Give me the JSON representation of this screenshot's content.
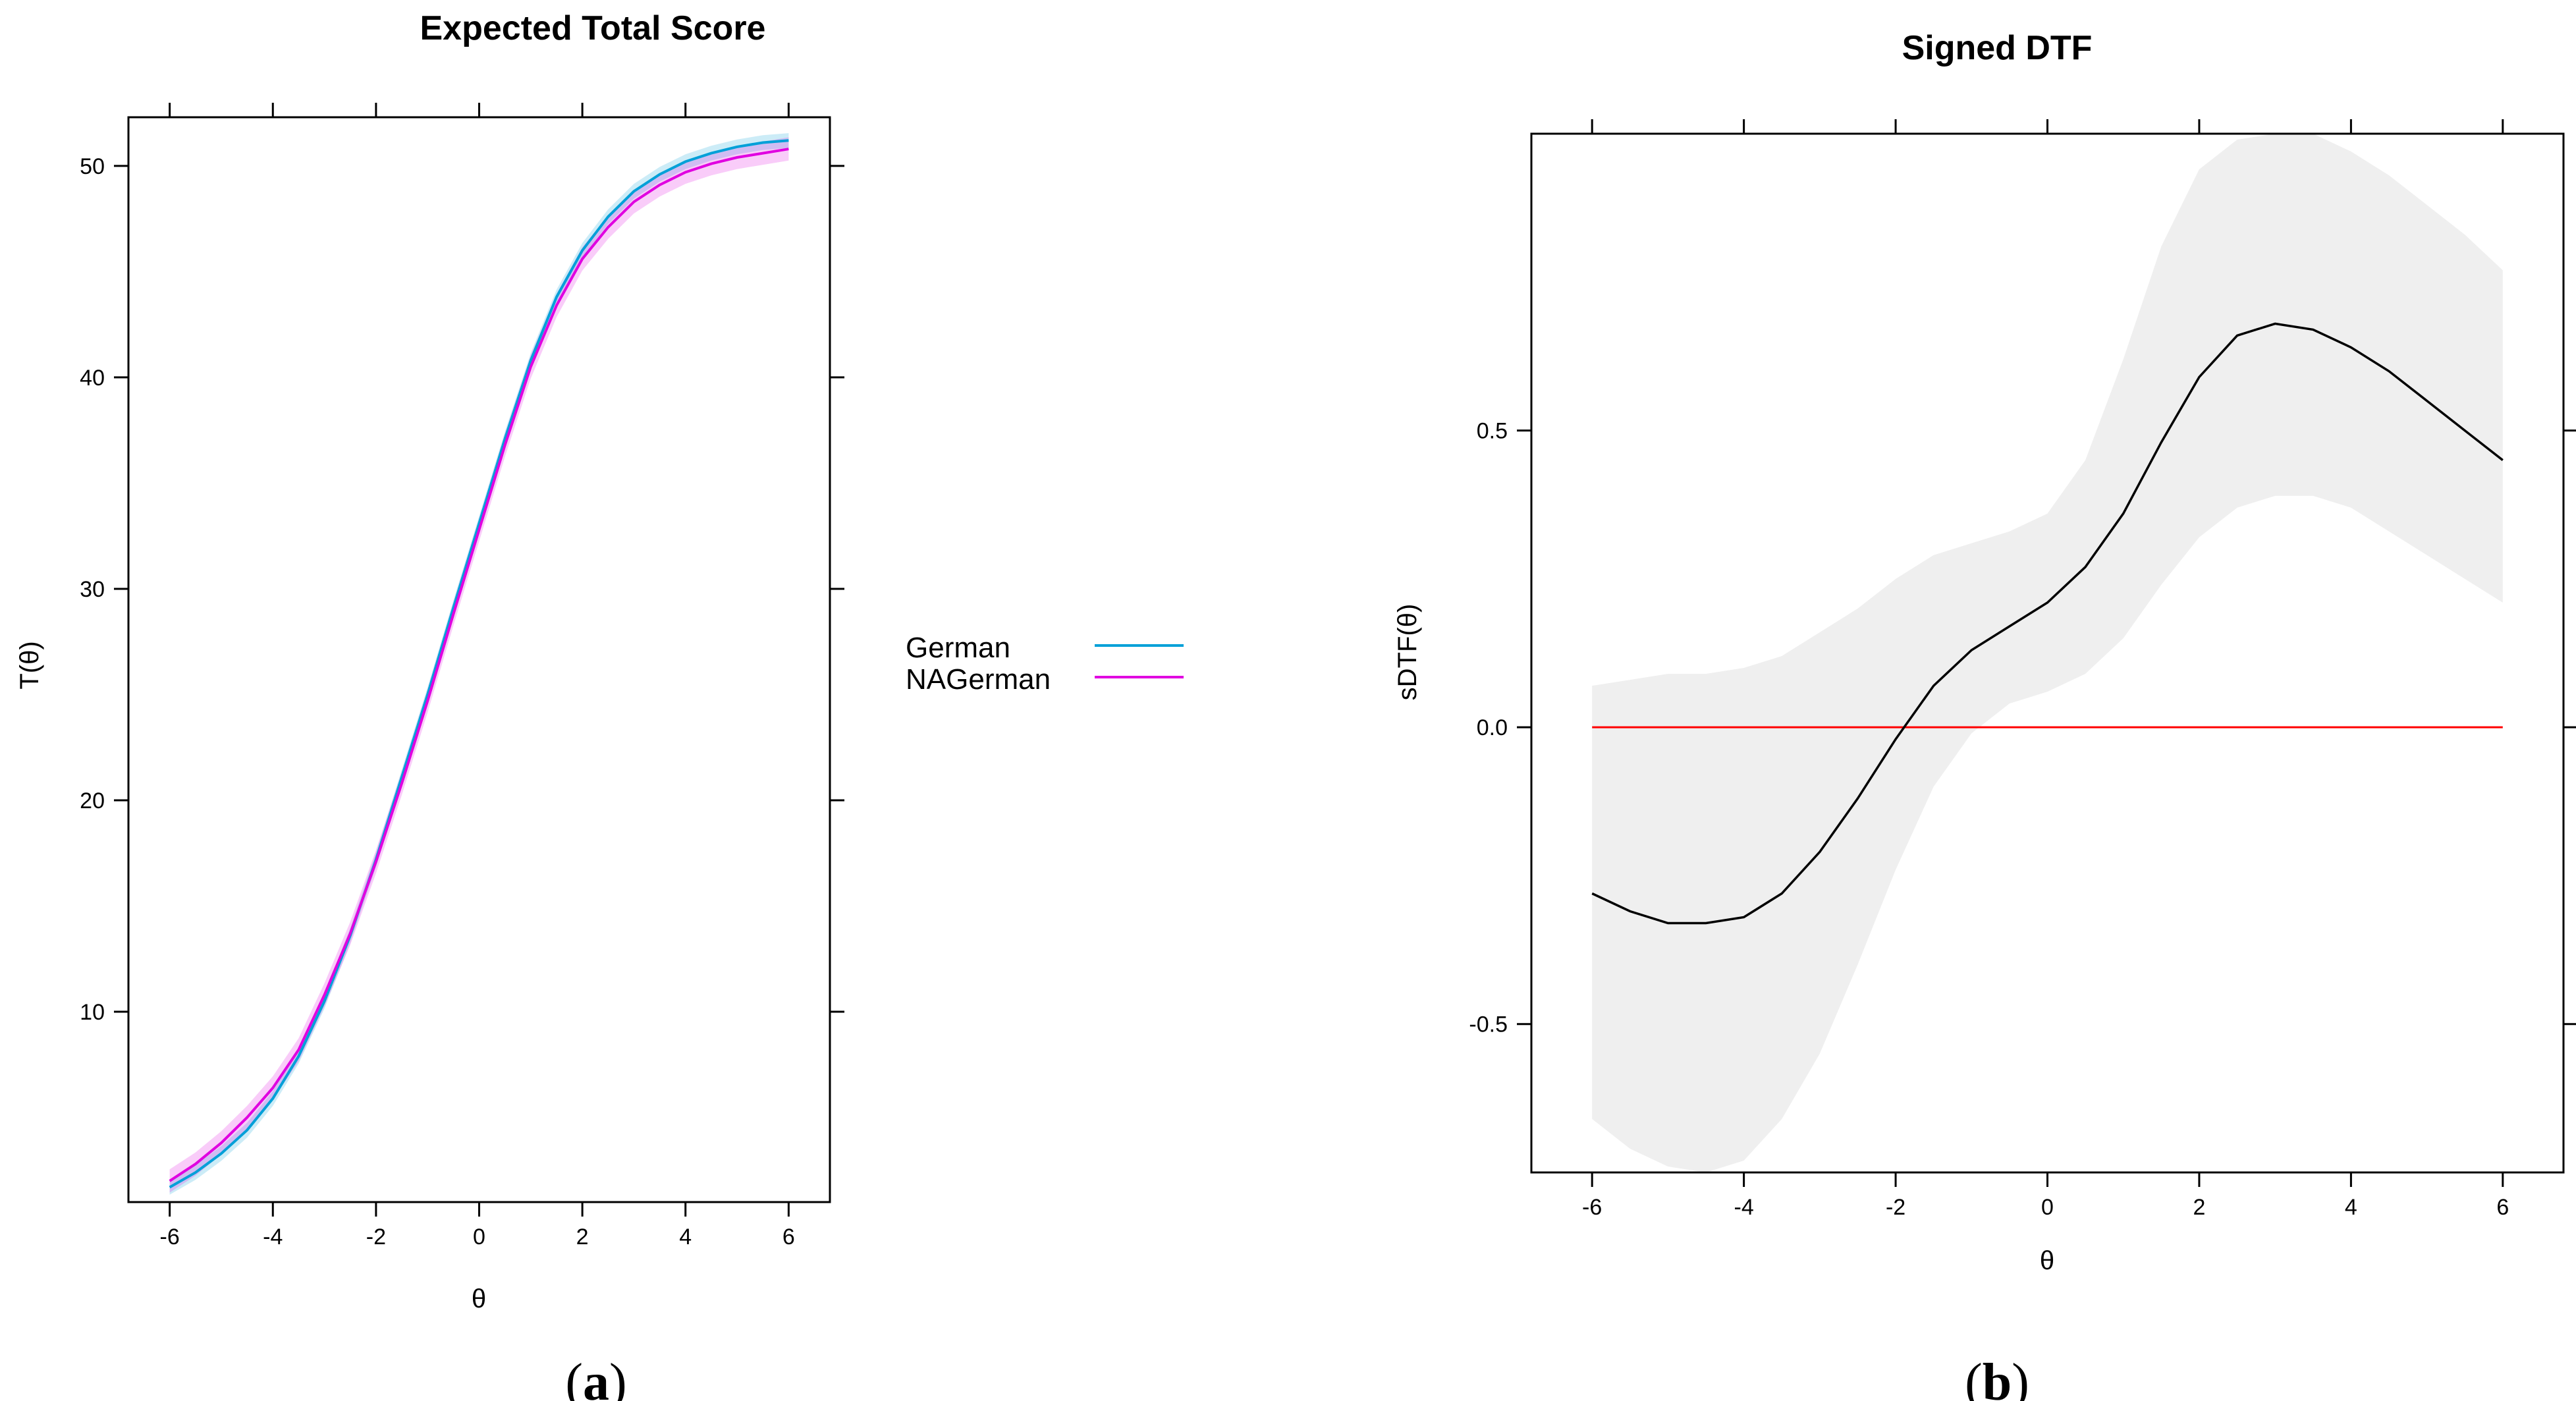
{
  "colors": {
    "german": "#00A0D8",
    "nagerman": "#E000E0",
    "reference_line": "#FF0000",
    "dtf_line": "#000000",
    "ci_band": "#EFEFEF"
  },
  "captions": {
    "a": {
      "open": "(",
      "letter": "a",
      "close": ")"
    },
    "b": {
      "open": "(",
      "letter": "b",
      "close": ")"
    }
  },
  "chart_data": [
    {
      "type": "line",
      "title": "Expected Total Score",
      "xlabel": "θ",
      "ylabel": "T(θ)",
      "xlim": [
        -6.8,
        6.8
      ],
      "ylim": [
        1.0,
        52.3
      ],
      "x_ticks": [
        -6,
        -4,
        -2,
        0,
        2,
        4,
        6
      ],
      "x_tick_labels": [
        "-6",
        "-4",
        "-2",
        "0",
        "2",
        "4",
        "6"
      ],
      "y_ticks": [
        10,
        20,
        30,
        40,
        50
      ],
      "y_tick_labels": [
        "10",
        "20",
        "30",
        "40",
        "50"
      ],
      "grid": false,
      "legend": {
        "position": "right",
        "entries": [
          "German",
          "NAGerman"
        ]
      },
      "x": [
        -6,
        -5.5,
        -5,
        -4.5,
        -4,
        -3.5,
        -3,
        -2.5,
        -2,
        -1.5,
        -1,
        -0.5,
        0,
        0.5,
        1,
        1.5,
        2,
        2.5,
        3,
        3.5,
        4,
        4.5,
        5,
        5.5,
        6
      ],
      "series": [
        {
          "name": "German",
          "values": [
            1.7,
            2.4,
            3.3,
            4.4,
            5.9,
            7.9,
            10.5,
            13.6,
            17.2,
            21.1,
            25.0,
            29.1,
            33.1,
            37.1,
            40.8,
            43.8,
            46.0,
            47.6,
            48.8,
            49.6,
            50.2,
            50.6,
            50.9,
            51.1,
            51.2
          ]
        },
        {
          "name": "NAGerman",
          "values": [
            2.0,
            2.8,
            3.8,
            5.0,
            6.4,
            8.2,
            10.8,
            13.7,
            17.1,
            20.8,
            24.7,
            28.8,
            32.8,
            36.8,
            40.5,
            43.4,
            45.6,
            47.1,
            48.3,
            49.1,
            49.7,
            50.1,
            50.4,
            50.6,
            50.8
          ]
        }
      ]
    },
    {
      "type": "line",
      "title": "Signed DTF",
      "xlabel": "θ",
      "ylabel": "sDTF(θ)",
      "xlim": [
        -6.8,
        6.8
      ],
      "ylim": [
        -0.75,
        1.0
      ],
      "x_ticks": [
        -6,
        -4,
        -2,
        0,
        2,
        4,
        6
      ],
      "x_tick_labels": [
        "-6",
        "-4",
        "-2",
        "0",
        "2",
        "4",
        "6"
      ],
      "y_ticks": [
        -0.5,
        0.0,
        0.5
      ],
      "y_tick_labels": [
        "-0.5",
        "0.0",
        "0.5"
      ],
      "grid": false,
      "x": [
        -6,
        -5.5,
        -5,
        -4.5,
        -4,
        -3.5,
        -3,
        -2.5,
        -2,
        -1.5,
        -1,
        -0.5,
        0,
        0.5,
        1,
        1.5,
        2,
        2.5,
        3,
        3.5,
        4,
        4.5,
        5,
        5.5,
        6
      ],
      "series": [
        {
          "values": [
            -0.28,
            -0.31,
            -0.33,
            -0.33,
            -0.32,
            -0.28,
            -0.21,
            -0.12,
            -0.02,
            0.07,
            0.13,
            0.17,
            0.21,
            0.27,
            0.36,
            0.48,
            0.59,
            0.66,
            0.68,
            0.67,
            0.64,
            0.6,
            0.55,
            0.5,
            0.45
          ]
        },
        {
          "values": [
            0,
            0,
            0,
            0,
            0,
            0,
            0,
            0,
            0,
            0,
            0,
            0,
            0,
            0,
            0,
            0,
            0,
            0,
            0,
            0,
            0,
            0,
            0,
            0,
            0
          ]
        }
      ],
      "band": {
        "lower": [
          -0.66,
          -0.71,
          -0.74,
          -0.75,
          -0.73,
          -0.66,
          -0.55,
          -0.4,
          -0.24,
          -0.1,
          -0.01,
          0.04,
          0.06,
          0.09,
          0.15,
          0.24,
          0.32,
          0.37,
          0.39,
          0.39,
          0.37,
          0.33,
          0.29,
          0.25,
          0.21
        ],
        "upper": [
          0.07,
          0.08,
          0.09,
          0.09,
          0.1,
          0.12,
          0.16,
          0.2,
          0.25,
          0.29,
          0.31,
          0.33,
          0.36,
          0.45,
          0.62,
          0.81,
          0.94,
          0.99,
          1.0,
          1.0,
          0.97,
          0.93,
          0.88,
          0.83,
          0.77
        ]
      }
    }
  ]
}
